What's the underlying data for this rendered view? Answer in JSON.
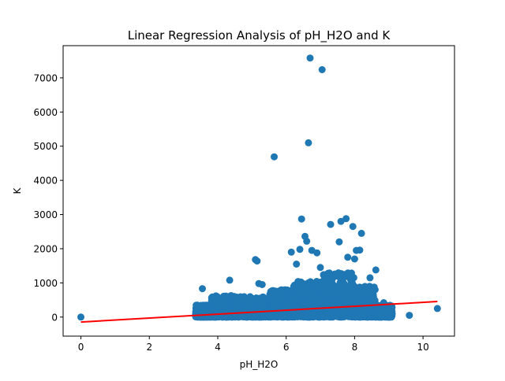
{
  "chart_data": {
    "type": "scatter",
    "title": "Linear Regression Analysis of pH_H2O and K",
    "xlabel": "pH_H2O",
    "ylabel": "K",
    "xlim": [
      -0.52,
      10.92
    ],
    "ylim": [
      -558,
      7942
    ],
    "xticks": [
      0,
      2,
      4,
      6,
      8,
      10
    ],
    "yticks": [
      0,
      1000,
      2000,
      3000,
      4000,
      5000,
      6000,
      7000
    ],
    "grid": false,
    "legend": "none",
    "colors": {
      "points": "#1f77b4",
      "regression_line": "#ff0000",
      "regression_line_dark": "#cc0000"
    },
    "outliers": [
      [
        6.7,
        7580
      ],
      [
        7.05,
        7240
      ],
      [
        6.65,
        5100
      ],
      [
        5.65,
        4690
      ],
      [
        6.45,
        2870
      ],
      [
        7.75,
        2880
      ],
      [
        7.6,
        2800
      ],
      [
        7.3,
        2710
      ],
      [
        7.95,
        2650
      ],
      [
        8.2,
        2450
      ],
      [
        6.55,
        2360
      ],
      [
        6.6,
        2220
      ],
      [
        7.55,
        2200
      ],
      [
        8.05,
        1950
      ],
      [
        8.15,
        1960
      ],
      [
        6.15,
        1900
      ],
      [
        6.4,
        1980
      ],
      [
        6.75,
        1950
      ],
      [
        6.9,
        1880
      ],
      [
        5.1,
        1680
      ],
      [
        5.15,
        1640
      ],
      [
        7.8,
        1750
      ],
      [
        8.0,
        1700
      ],
      [
        6.3,
        1550
      ],
      [
        7.0,
        1450
      ],
      [
        8.45,
        1150
      ],
      [
        8.62,
        1380
      ],
      [
        4.35,
        1080
      ],
      [
        5.2,
        980
      ],
      [
        5.3,
        950
      ],
      [
        0.0,
        0
      ],
      [
        9.6,
        50
      ],
      [
        10.42,
        250
      ],
      [
        9.05,
        130
      ],
      [
        8.95,
        180
      ],
      [
        8.85,
        420
      ],
      [
        3.4,
        350
      ],
      [
        3.35,
        60
      ],
      [
        3.55,
        830
      ]
    ],
    "cloud_bands": [
      [
        3.35,
        3.8,
        0,
        350
      ],
      [
        3.8,
        4.5,
        0,
        650
      ],
      [
        4.5,
        5.5,
        0,
        600
      ],
      [
        5.5,
        6.2,
        0,
        800
      ],
      [
        6.2,
        7.0,
        0,
        1050
      ],
      [
        7.0,
        8.0,
        0,
        1300
      ],
      [
        8.0,
        8.6,
        0,
        900
      ],
      [
        8.6,
        9.1,
        0,
        350
      ]
    ],
    "cloud_points": 2600,
    "regression": {
      "x": [
        0,
        10.42
      ],
      "y": [
        -145,
        455
      ]
    }
  }
}
